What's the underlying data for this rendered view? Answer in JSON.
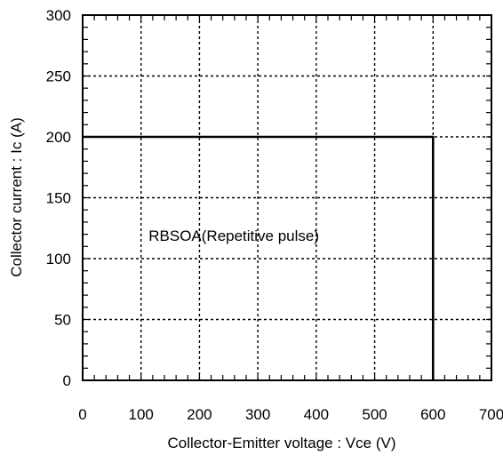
{
  "chart_data": {
    "type": "line",
    "title": "",
    "xlabel": "Collector-Emitter voltage : Vce (V)",
    "ylabel": "Collector current : Ic (A)",
    "xlim": [
      0,
      700
    ],
    "ylim": [
      0,
      300
    ],
    "x_ticks": [
      0,
      100,
      200,
      300,
      400,
      500,
      600,
      700
    ],
    "y_ticks": [
      0,
      50,
      100,
      150,
      200,
      250,
      300
    ],
    "x_tick_labels": [
      "0",
      "100",
      "200",
      "300",
      "400",
      "500",
      "600",
      "700"
    ],
    "y_tick_labels": [
      "0",
      "50",
      "100",
      "150",
      "200",
      "250",
      "300"
    ],
    "grid": true,
    "series": [
      {
        "x": [
          0,
          600,
          600
        ],
        "y": [
          200,
          200,
          0
        ]
      }
    ],
    "annotation": {
      "text": "RBSOA(Repetitive pulse)",
      "x": 230,
      "y": 119
    },
    "colors": {
      "line": "#000000",
      "grid": "#000000",
      "frame": "#000000"
    }
  }
}
